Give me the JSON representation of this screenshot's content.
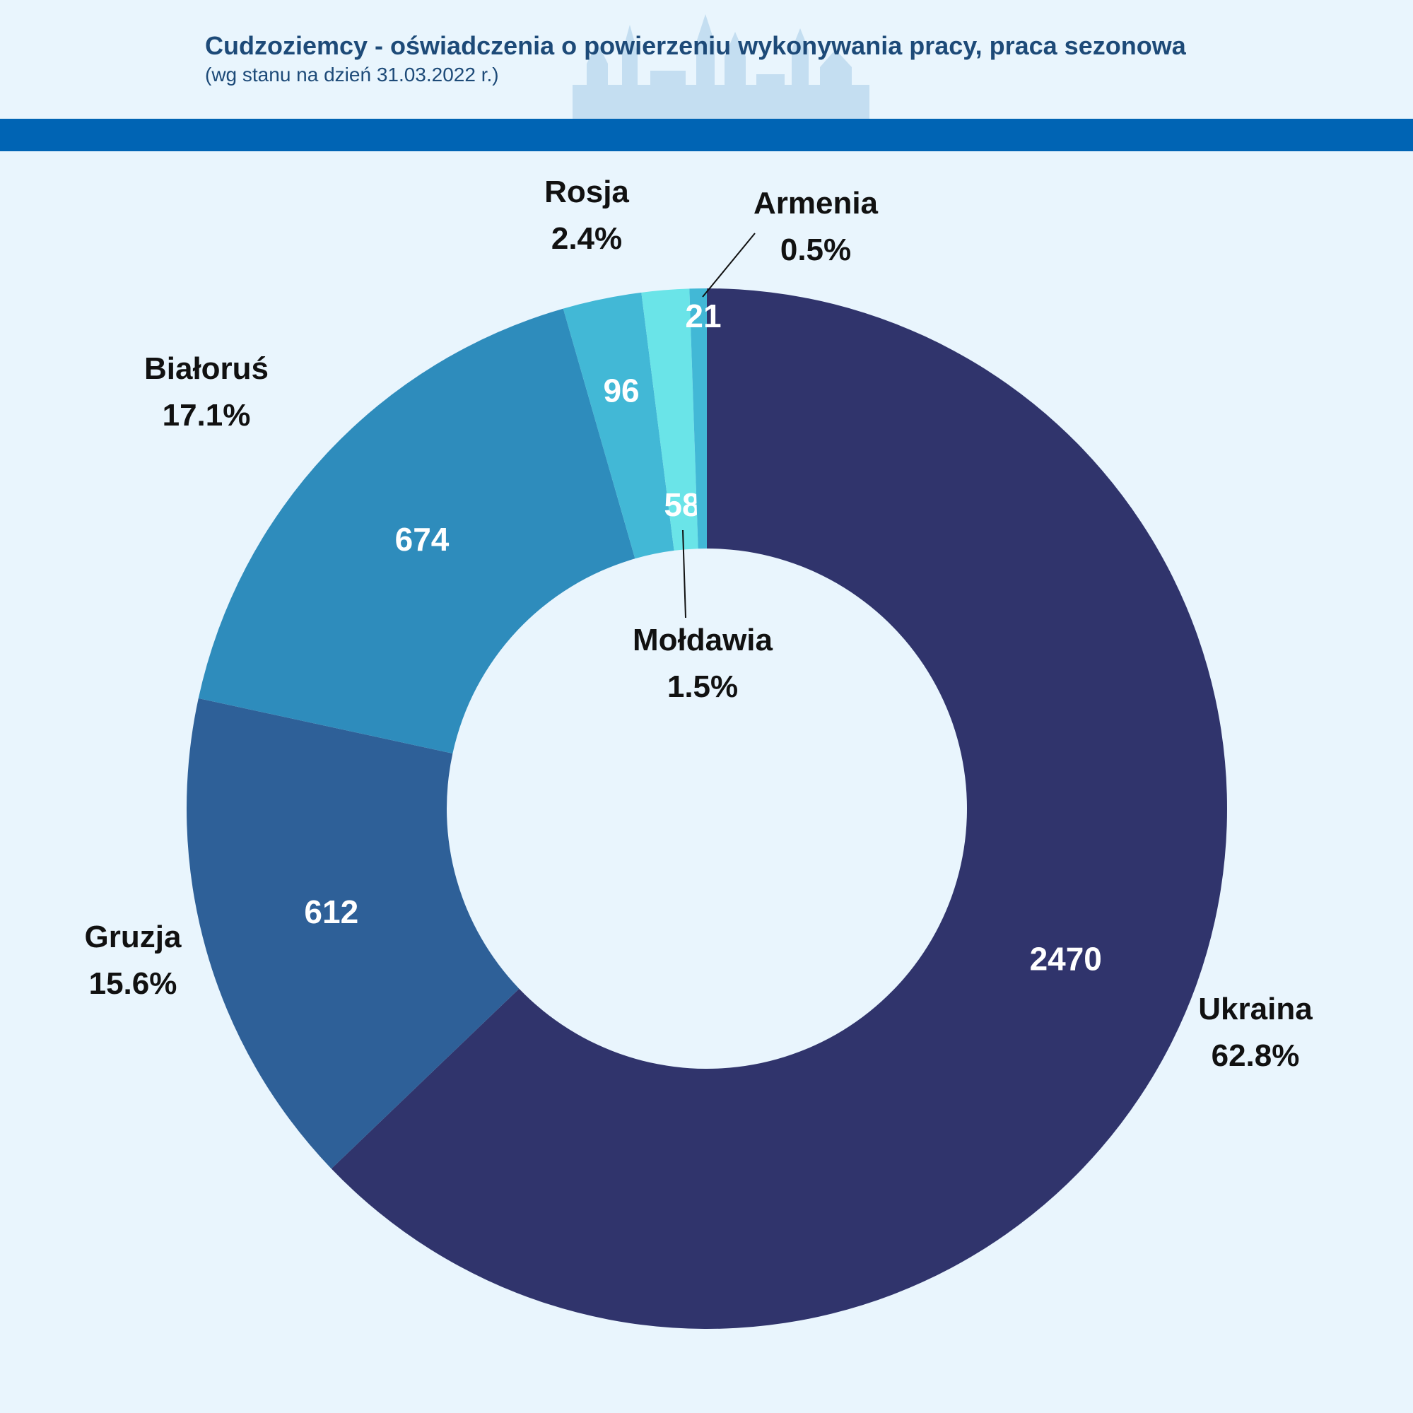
{
  "header": {
    "title": "Cudzoziemcy - oświadczenia o powierzeniu wykonywania pracy, praca sezonowa",
    "subtitle": "(wg stanu na dzień 31.03.2022 r.)"
  },
  "colors": {
    "background": "#e9f5fd",
    "bar": "#0064b4",
    "title": "#1d4a78"
  },
  "chart_data": {
    "type": "pie",
    "donut": true,
    "start_angle_deg": 0,
    "direction": "clockwise",
    "slices": [
      {
        "label": "Ukraina",
        "value": 2470,
        "percent_label": "62.8%",
        "color": "#30346c"
      },
      {
        "label": "Gruzja",
        "value": 612,
        "percent_label": "15.6%",
        "color": "#2e6098"
      },
      {
        "label": "Białoruś",
        "value": 674,
        "percent_label": "17.1%",
        "color": "#2e8cbc"
      },
      {
        "label": "Rosja",
        "value": 96,
        "percent_label": "2.4%",
        "color": "#42b8d6"
      },
      {
        "label": "Mołdawia",
        "value": 58,
        "percent_label": "1.5%",
        "color": "#6ae4e8"
      },
      {
        "label": "Armenia",
        "value": 21,
        "percent_label": "0.5%",
        "color": "#42b8d6"
      }
    ]
  }
}
